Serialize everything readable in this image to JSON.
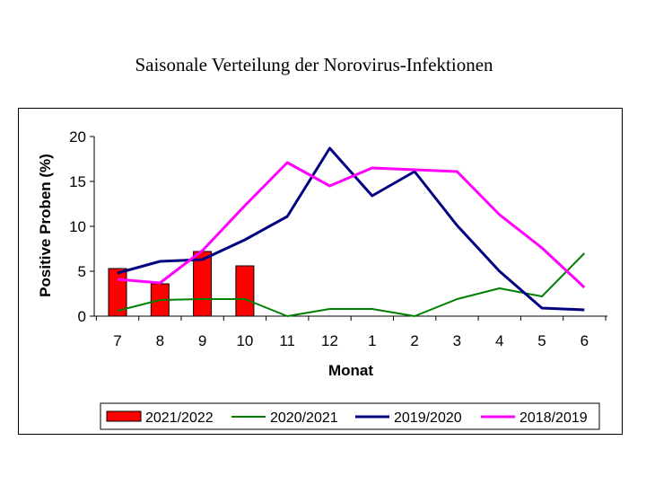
{
  "chart_data": {
    "type": "bar+line",
    "title": "Saisonale Verteilung der Norovirus-Infektionen",
    "xlabel": "Monat",
    "ylabel": "Positive Proben (%)",
    "ylim": [
      0,
      20
    ],
    "yticks": [
      0,
      5,
      10,
      15,
      20
    ],
    "categories": [
      "7",
      "8",
      "9",
      "10",
      "11",
      "12",
      "1",
      "2",
      "3",
      "4",
      "5",
      "6"
    ],
    "legend_position": "bottom",
    "series": [
      {
        "name": "2021/2022",
        "kind": "bar",
        "color": "#ff0000",
        "values": [
          5.3,
          3.6,
          7.2,
          5.6,
          null,
          null,
          null,
          null,
          null,
          null,
          null,
          null
        ]
      },
      {
        "name": "2020/2021",
        "kind": "line",
        "color": "#008000",
        "values": [
          0.6,
          1.8,
          1.9,
          1.9,
          0.0,
          0.8,
          0.8,
          0.0,
          1.9,
          3.1,
          2.2,
          7.0
        ]
      },
      {
        "name": "2019/2020",
        "kind": "line",
        "color": "#000080",
        "values": [
          4.8,
          6.1,
          6.3,
          8.5,
          11.1,
          18.7,
          13.4,
          16.1,
          10.1,
          5.0,
          0.9,
          0.7
        ]
      },
      {
        "name": "2018/2019",
        "kind": "line",
        "color": "#ff00ff",
        "values": [
          4.1,
          3.7,
          7.3,
          12.3,
          17.1,
          14.5,
          16.5,
          16.3,
          16.1,
          11.3,
          7.6,
          3.2
        ]
      }
    ]
  }
}
